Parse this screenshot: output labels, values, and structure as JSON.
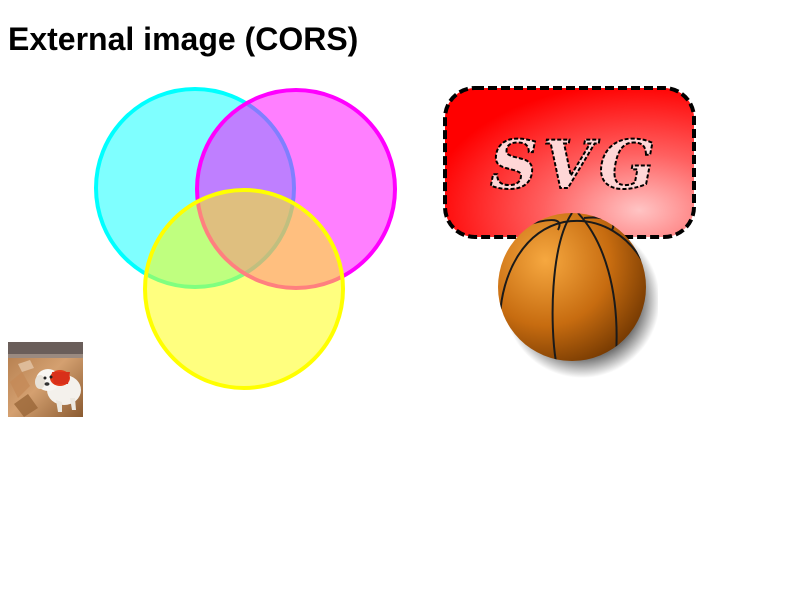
{
  "page": {
    "title": "External image (CORS)"
  },
  "graphics": {
    "venn": {
      "icon": "venn-diagram-icon",
      "circle_colors": {
        "cyan": {
          "fill": "#00ffff",
          "stroke": "#00ffff"
        },
        "magenta": {
          "fill": "#ff00ff",
          "stroke": "#ff00ff"
        },
        "yellow": {
          "fill": "#ffff00",
          "stroke": "#ffff00"
        }
      }
    },
    "svg_badge": {
      "text": "SVG",
      "colors": {
        "gradient_dark": "#ff0000",
        "gradient_light": "#ffbbbb",
        "border": "#000000"
      }
    },
    "basketball": {
      "icon": "basketball-icon",
      "colors": {
        "light": "#f6a840",
        "mid": "#c76c10",
        "dark": "#6b3300",
        "seams": "#1a1a1a"
      }
    },
    "photo": {
      "icon": "dog-photo-icon",
      "subject": "dog"
    }
  }
}
